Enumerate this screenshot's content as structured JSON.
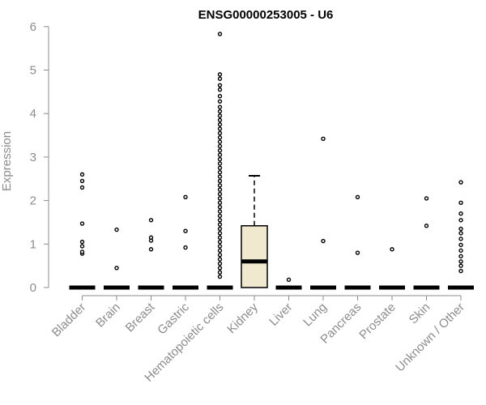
{
  "chart_data": {
    "type": "boxplot",
    "title": "ENSG00000253005 - U6",
    "xlabel": "",
    "ylabel": "Expression",
    "ylim": [
      0,
      6
    ],
    "yticks": [
      0,
      1,
      2,
      3,
      4,
      5,
      6
    ],
    "grid": false,
    "box_fill": "#f0e9d0",
    "categories": [
      "Bladder",
      "Brain",
      "Breast",
      "Gastric",
      "Hematopoietic cells",
      "Kidney",
      "Liver",
      "Lung",
      "Pancreas",
      "Prostate",
      "Skin",
      "Unknown / Other"
    ],
    "boxes": [
      {
        "category": "Bladder",
        "q1": 0,
        "median": 0,
        "q3": 0,
        "whisker_low": 0,
        "whisker_high": 0,
        "outliers": [
          0.78,
          0.82,
          0.95,
          1.05,
          1.47,
          2.3,
          2.45,
          2.6
        ]
      },
      {
        "category": "Brain",
        "q1": 0,
        "median": 0,
        "q3": 0,
        "whisker_low": 0,
        "whisker_high": 0,
        "outliers": [
          0.45,
          1.33
        ]
      },
      {
        "category": "Breast",
        "q1": 0,
        "median": 0,
        "q3": 0,
        "whisker_low": 0,
        "whisker_high": 0,
        "outliers": [
          0.88,
          1.08,
          1.15,
          1.55
        ]
      },
      {
        "category": "Gastric",
        "q1": 0,
        "median": 0,
        "q3": 0,
        "whisker_low": 0,
        "whisker_high": 0,
        "outliers": [
          0.92,
          1.3,
          2.08
        ]
      },
      {
        "category": "Hematopoietic cells",
        "q1": 0,
        "median": 0,
        "q3": 0,
        "whisker_low": 0,
        "whisker_high": 0,
        "outliers": [
          0.25,
          0.35,
          0.45,
          0.55,
          0.65,
          0.75,
          0.85,
          0.95,
          1.05,
          1.15,
          1.25,
          1.35,
          1.45,
          1.55,
          1.65,
          1.75,
          1.85,
          1.95,
          2.05,
          2.15,
          2.25,
          2.35,
          2.45,
          2.55,
          2.65,
          2.75,
          2.85,
          2.95,
          3.05,
          3.15,
          3.25,
          3.35,
          3.45,
          3.55,
          3.65,
          3.75,
          3.85,
          3.95,
          4.05,
          4.15,
          4.28,
          4.4,
          4.55,
          4.65,
          4.8,
          4.9,
          5.83
        ]
      },
      {
        "category": "Kidney",
        "q1": 0,
        "median": 0.6,
        "q3": 1.42,
        "whisker_low": 0,
        "whisker_high": 2.57,
        "outliers": []
      },
      {
        "category": "Liver",
        "q1": 0,
        "median": 0,
        "q3": 0,
        "whisker_low": 0,
        "whisker_high": 0,
        "outliers": [
          0.18
        ]
      },
      {
        "category": "Lung",
        "q1": 0,
        "median": 0,
        "q3": 0,
        "whisker_low": 0,
        "whisker_high": 0,
        "outliers": [
          1.07,
          3.42
        ]
      },
      {
        "category": "Pancreas",
        "q1": 0,
        "median": 0,
        "q3": 0,
        "whisker_low": 0,
        "whisker_high": 0,
        "outliers": [
          0.8,
          2.08
        ]
      },
      {
        "category": "Prostate",
        "q1": 0,
        "median": 0,
        "q3": 0,
        "whisker_low": 0,
        "whisker_high": 0,
        "outliers": [
          0.88
        ]
      },
      {
        "category": "Skin",
        "q1": 0,
        "median": 0,
        "q3": 0,
        "whisker_low": 0,
        "whisker_high": 0,
        "outliers": [
          1.42,
          2.05
        ]
      },
      {
        "category": "Unknown / Other",
        "q1": 0,
        "median": 0,
        "q3": 0,
        "whisker_low": 0,
        "whisker_high": 0,
        "outliers": [
          0.38,
          0.5,
          0.6,
          0.72,
          0.85,
          0.98,
          1.12,
          1.25,
          1.35,
          1.55,
          1.7,
          1.95,
          2.42
        ]
      }
    ]
  }
}
